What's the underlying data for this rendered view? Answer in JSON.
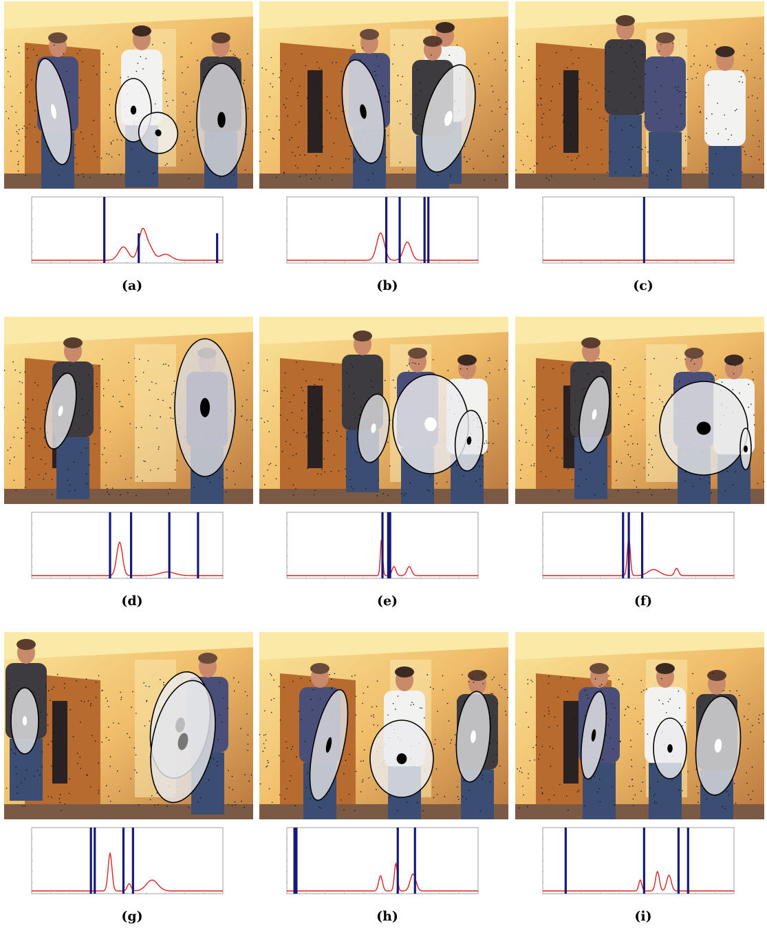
{
  "figure": {
    "panels": [
      {
        "caption": "(a)",
        "people": [
          {
            "shirt": "#4a4f7a",
            "head": "#6a4a3a"
          },
          {
            "shirt": "#f2f2f0",
            "head": "#3a2a22"
          },
          {
            "shirt": "#3d3a40",
            "head": "#5a3d2e"
          }
        ],
        "ellipses": [
          {
            "fill": "#e8e8ea",
            "mark": "white"
          },
          {
            "fill": "#f2f2f2",
            "mark": "black"
          },
          {
            "fill": "#f0f0f0",
            "mark": "black"
          },
          {
            "fill": "#d8d8dc",
            "mark": "black"
          }
        ],
        "chart": {
          "bars": [
            0.38,
            0.56,
            0.97
          ],
          "bar_heights": [
            1.0,
            0.45,
            0.45
          ],
          "peaks": [
            [
              0.48,
              0.22,
              0.025
            ],
            [
              0.58,
              0.5,
              0.02
            ],
            [
              0.62,
              0.18,
              0.02
            ],
            [
              0.7,
              0.1,
              0.03
            ]
          ]
        }
      },
      {
        "caption": "(b)",
        "people": [
          {
            "shirt": "#4a4f7a",
            "head": "#6a4a3a"
          },
          {
            "shirt": "#f2f2f0",
            "head": "#3a2a22"
          },
          {
            "shirt": "#3d3a40",
            "head": "#5a3d2e"
          }
        ],
        "ellipses": [
          {
            "fill": "#e3e3e5",
            "mark": "black"
          },
          {
            "fill": "#e6e6e8",
            "mark": "white"
          }
        ],
        "chart": {
          "bars": [
            0.52,
            0.59,
            0.72,
            0.74
          ],
          "bar_heights": [
            1.0,
            1.0,
            1.0,
            1.0
          ],
          "peaks": [
            [
              0.49,
              0.45,
              0.02
            ],
            [
              0.63,
              0.3,
              0.02
            ]
          ]
        }
      },
      {
        "caption": "(c)",
        "people": [
          {
            "shirt": "#3d3a40",
            "head": "#5a3d2e"
          },
          {
            "shirt": "#4a4f7a",
            "head": "#6a4a3a"
          },
          {
            "shirt": "#f2f2f0",
            "head": "#3a2a22"
          }
        ],
        "ellipses": [],
        "chart": {
          "bars": [
            0.53
          ],
          "bar_heights": [
            1.0
          ],
          "peaks": []
        }
      },
      {
        "caption": "(d)",
        "people": [
          {
            "shirt": "#3d3a40",
            "head": "#5a3d2e"
          },
          {
            "shirt": "#4a4f7a",
            "head": "#6a4a3a"
          }
        ],
        "ellipses": [
          {
            "fill": "#e0e0e2",
            "mark": "white"
          },
          {
            "fill": "#d8d8dc",
            "mark": "black"
          }
        ],
        "chart": {
          "bars": [
            0.41,
            0.52,
            0.72,
            0.87
          ],
          "bar_heights": [
            1.0,
            1.0,
            1.0,
            1.0
          ],
          "peaks": [
            [
              0.46,
              0.55,
              0.015
            ],
            [
              0.71,
              0.06,
              0.04
            ]
          ]
        }
      },
      {
        "caption": "(e)",
        "people": [
          {
            "shirt": "#3d3a40",
            "head": "#5a3d2e"
          },
          {
            "shirt": "#4a4f7a",
            "head": "#6a4a3a"
          },
          {
            "shirt": "#f2f2f0",
            "head": "#3a2a22"
          }
        ],
        "ellipses": [
          {
            "fill": "#dcdcde",
            "mark": "white"
          },
          {
            "fill": "#ececee",
            "mark": "white"
          },
          {
            "fill": "#e8e8ea",
            "mark": "black"
          }
        ],
        "chart": {
          "bars": [
            0.5,
            0.53,
            0.54
          ],
          "bar_heights": [
            1.0,
            1.0,
            1.0
          ],
          "peaks": [
            [
              0.495,
              0.6,
              0.006
            ],
            [
              0.56,
              0.15,
              0.01
            ],
            [
              0.64,
              0.15,
              0.012
            ]
          ]
        }
      },
      {
        "caption": "(f)",
        "people": [
          {
            "shirt": "#3d3a40",
            "head": "#5a3d2e"
          },
          {
            "shirt": "#4a4f7a",
            "head": "#6a4a3a"
          },
          {
            "shirt": "#f2f2f0",
            "head": "#3a2a22"
          }
        ],
        "ellipses": [
          {
            "fill": "#dcdcde",
            "mark": "white"
          },
          {
            "fill": "#e6e6e8",
            "mark": "black"
          },
          {
            "fill": "#eeeeee",
            "mark": "black"
          }
        ],
        "chart": {
          "bars": [
            0.42,
            0.45,
            0.52
          ],
          "bar_heights": [
            1.0,
            1.0,
            1.0
          ],
          "peaks": [
            [
              0.45,
              0.62,
              0.008
            ],
            [
              0.58,
              0.1,
              0.03
            ],
            [
              0.7,
              0.12,
              0.01
            ]
          ]
        }
      },
      {
        "caption": "(g)",
        "people": [
          {
            "shirt": "#3d3a40",
            "head": "#5a3d2e"
          },
          {
            "shirt": "#4a4f7a",
            "head": "#6a4a3a"
          }
        ],
        "ellipses": [
          {
            "fill": "#e0e0e2",
            "mark": "white"
          },
          {
            "fill": "#ececee",
            "mark": "black"
          },
          {
            "fill": "#e4e4e6",
            "mark": "gray"
          }
        ],
        "chart": {
          "bars": [
            0.31,
            0.33,
            0.48,
            0.53
          ],
          "bar_heights": [
            1.0,
            1.0,
            1.0,
            1.0
          ],
          "peaks": [
            [
              0.41,
              0.62,
              0.01
            ],
            [
              0.51,
              0.12,
              0.01
            ],
            [
              0.63,
              0.18,
              0.03
            ]
          ]
        }
      },
      {
        "caption": "(h)",
        "people": [
          {
            "shirt": "#4a4f7a",
            "head": "#6a4a3a"
          },
          {
            "shirt": "#f2f2f0",
            "head": "#3a2a22"
          },
          {
            "shirt": "#3d3a40",
            "head": "#5a3d2e"
          }
        ],
        "ellipses": [
          {
            "fill": "#dedee0",
            "mark": "black"
          },
          {
            "fill": "#ececee",
            "mark": "black"
          },
          {
            "fill": "#dcdcde",
            "mark": "white"
          }
        ],
        "chart": {
          "bars": [
            0.04,
            0.05,
            0.58,
            0.67
          ],
          "bar_heights": [
            1.0,
            1.0,
            1.0,
            1.0
          ],
          "peaks": [
            [
              0.49,
              0.25,
              0.01
            ],
            [
              0.57,
              0.45,
              0.008
            ],
            [
              0.66,
              0.28,
              0.015
            ]
          ]
        }
      },
      {
        "caption": "(i)",
        "people": [
          {
            "shirt": "#4a4f7a",
            "head": "#6a4a3a"
          },
          {
            "shirt": "#f2f2f0",
            "head": "#3a2a22"
          },
          {
            "shirt": "#3d3a40",
            "head": "#5a3d2e"
          }
        ],
        "ellipses": [
          {
            "fill": "#e4e4e6",
            "mark": "black"
          },
          {
            "fill": "#ececee",
            "mark": "black"
          },
          {
            "fill": "#dcdcde",
            "mark": "white"
          }
        ],
        "chart": {
          "bars": [
            0.12,
            0.53,
            0.71,
            0.76
          ],
          "bar_heights": [
            1.0,
            1.0,
            1.0,
            1.0
          ],
          "peaks": [
            [
              0.51,
              0.18,
              0.008
            ],
            [
              0.6,
              0.32,
              0.01
            ],
            [
              0.66,
              0.26,
              0.012
            ]
          ]
        }
      }
    ],
    "colors": {
      "bar": "#141a7a",
      "curve": "#e02020",
      "axis": "#888888"
    }
  }
}
